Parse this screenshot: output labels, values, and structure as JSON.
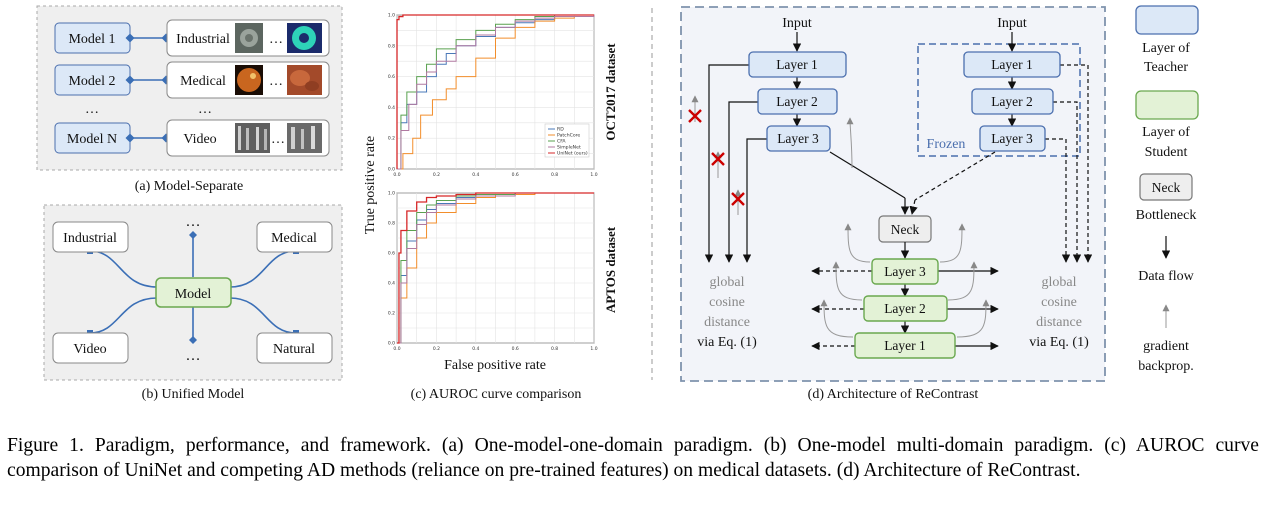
{
  "panel_a": {
    "models": [
      "Model 1",
      "Model 2",
      "Model N"
    ],
    "domains": [
      "Industrial",
      "Medical",
      "Video"
    ],
    "ellipsis": "…",
    "caption": "(a) Model-Separate"
  },
  "panel_b": {
    "center": "Model",
    "nodes": [
      "Industrial",
      "Medical",
      "Video",
      "Natural"
    ],
    "ellipsis": "…",
    "caption": "(b) Unified Model"
  },
  "panel_c": {
    "ylabel": "True positive rate",
    "xlabel": "False positive rate",
    "top_dataset_label": "OCT2017 dataset",
    "bottom_dataset_label": "APTOS dataset",
    "caption": "(c) AUROC curve comparison",
    "legend": [
      "RD",
      "PatchCore",
      "CFA",
      "SimpleNet",
      "UniNet (ours)"
    ],
    "colors": [
      "#4a78b8",
      "#f28e2b",
      "#59a14f",
      "#b07aa1",
      "#d62728"
    ]
  },
  "chart_data": [
    {
      "type": "line",
      "title": "",
      "xlabel": "False positive rate",
      "ylabel": "True positive rate",
      "xlim": [
        0,
        1
      ],
      "ylim": [
        0,
        1
      ],
      "xticks": [
        "0.0",
        "0.2",
        "0.4",
        "0.6",
        "0.8",
        "1.0"
      ],
      "yticks": [
        "0.0",
        "0.2",
        "0.4",
        "0.6",
        "0.8",
        "1.0"
      ],
      "grid": true,
      "legend_position": "lower-right",
      "series": [
        {
          "name": "RD",
          "x": [
            0,
            0.02,
            0.05,
            0.1,
            0.15,
            0.2,
            0.25,
            0.3,
            0.4,
            0.5,
            0.6,
            0.7,
            0.8,
            1.0
          ],
          "y": [
            0,
            0.3,
            0.42,
            0.5,
            0.6,
            0.68,
            0.75,
            0.8,
            0.86,
            0.92,
            0.95,
            0.97,
            0.99,
            1.0
          ]
        },
        {
          "name": "PatchCore",
          "x": [
            0,
            0.03,
            0.08,
            0.12,
            0.18,
            0.25,
            0.3,
            0.4,
            0.5,
            0.6,
            0.7,
            0.8,
            0.9,
            1.0
          ],
          "y": [
            0,
            0.1,
            0.2,
            0.35,
            0.45,
            0.52,
            0.6,
            0.72,
            0.85,
            0.92,
            0.96,
            0.98,
            0.99,
            1.0
          ]
        },
        {
          "name": "CFA",
          "x": [
            0,
            0.02,
            0.05,
            0.1,
            0.15,
            0.2,
            0.3,
            0.4,
            0.5,
            0.6,
            0.7,
            0.8,
            1.0
          ],
          "y": [
            0,
            0.35,
            0.5,
            0.6,
            0.68,
            0.78,
            0.84,
            0.9,
            0.94,
            0.97,
            0.99,
            1.0,
            1.0
          ]
        },
        {
          "name": "SimpleNet",
          "x": [
            0,
            0.02,
            0.06,
            0.1,
            0.15,
            0.2,
            0.3,
            0.4,
            0.5,
            0.6,
            0.7,
            0.8,
            1.0
          ],
          "y": [
            0,
            0.25,
            0.42,
            0.55,
            0.63,
            0.7,
            0.8,
            0.87,
            0.92,
            0.96,
            0.98,
            0.99,
            1.0
          ]
        },
        {
          "name": "UniNet (ours)",
          "x": [
            0,
            0.0,
            0.01,
            0.03,
            1.0
          ],
          "y": [
            0,
            0.97,
            0.99,
            1.0,
            1.0
          ]
        }
      ]
    },
    {
      "type": "line",
      "title": "",
      "xlabel": "False positive rate",
      "ylabel": "True positive rate",
      "xlim": [
        0,
        1
      ],
      "ylim": [
        0,
        1
      ],
      "xticks": [
        "0.0",
        "0.2",
        "0.4",
        "0.6",
        "0.8",
        "1.0"
      ],
      "yticks": [
        "0.0",
        "0.2",
        "0.4",
        "0.6",
        "0.8",
        "1.0"
      ],
      "grid": true,
      "series": [
        {
          "name": "RD",
          "x": [
            0,
            0.02,
            0.05,
            0.1,
            0.15,
            0.2,
            0.3,
            0.4,
            0.6,
            0.8,
            1.0
          ],
          "y": [
            0,
            0.45,
            0.68,
            0.82,
            0.89,
            0.93,
            0.97,
            0.99,
            1.0,
            1.0,
            1.0
          ]
        },
        {
          "name": "PatchCore",
          "x": [
            0,
            0.02,
            0.05,
            0.1,
            0.15,
            0.2,
            0.3,
            0.4,
            0.5,
            0.7,
            1.0
          ],
          "y": [
            0,
            0.3,
            0.5,
            0.7,
            0.8,
            0.87,
            0.93,
            0.97,
            0.99,
            1.0,
            1.0
          ]
        },
        {
          "name": "CFA",
          "x": [
            0,
            0.02,
            0.05,
            0.1,
            0.15,
            0.2,
            0.3,
            0.4,
            0.6,
            0.8,
            1.0
          ],
          "y": [
            0,
            0.55,
            0.75,
            0.87,
            0.92,
            0.95,
            0.98,
            0.99,
            1.0,
            1.0,
            1.0
          ]
        },
        {
          "name": "SimpleNet",
          "x": [
            0,
            0.02,
            0.05,
            0.1,
            0.15,
            0.2,
            0.3,
            0.4,
            0.6,
            0.8,
            1.0
          ],
          "y": [
            0,
            0.4,
            0.63,
            0.79,
            0.87,
            0.92,
            0.96,
            0.98,
            1.0,
            1.0,
            1.0
          ]
        },
        {
          "name": "UniNet (ours)",
          "x": [
            0,
            0.01,
            0.02,
            0.05,
            0.1,
            0.15,
            0.2,
            0.3,
            0.4,
            0.6,
            1.0
          ],
          "y": [
            0,
            0.6,
            0.75,
            0.88,
            0.94,
            0.97,
            0.98,
            0.99,
            1.0,
            1.0,
            1.0
          ]
        }
      ]
    }
  ],
  "panel_d": {
    "input": "Input",
    "teacher_layers": [
      "Layer 1",
      "Layer 2",
      "Layer 3"
    ],
    "frozen": "Frozen",
    "neck": "Neck",
    "student_layers": [
      "Layer 3",
      "Layer 2",
      "Layer 1"
    ],
    "distance": [
      "global",
      "cosine",
      "distance",
      "via Eq. (1)"
    ],
    "caption": "(d) Architecture of ReContrast",
    "colors": {
      "teacher": "#dce8f7",
      "teacher_border": "#4b6fae",
      "student": "#e3f2d6",
      "student_border": "#6aa84f",
      "neck": "#eeeeee",
      "cross": "#cc0000"
    }
  },
  "legend_d": {
    "teacher": [
      "Layer of",
      "Teacher"
    ],
    "student": [
      "Layer of",
      "Student"
    ],
    "neck": "Neck",
    "bottleneck": "Bottleneck",
    "data_flow": "Data flow",
    "gradient": [
      "gradient",
      "backprop."
    ]
  },
  "caption": "Figure 1.  Paradigm, performance, and framework.  (a) One-model-one-domain paradigm.  (b) One-model multi-domain paradigm.  (c) AUROC curve comparison of UniNet and competing AD methods (reliance on pre-trained features) on medical datasets. (d) Architecture of ReContrast."
}
